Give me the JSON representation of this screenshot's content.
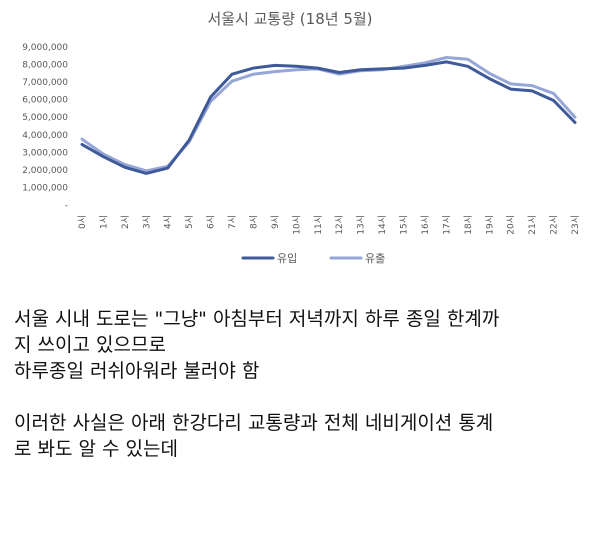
{
  "chart_data": {
    "type": "line",
    "title": "서울시 교통량 (18년 5월)",
    "categories": [
      "0시",
      "1시",
      "2시",
      "3시",
      "4시",
      "5시",
      "6시",
      "7시",
      "8시",
      "9시",
      "10시",
      "11시",
      "12시",
      "13시",
      "14시",
      "15시",
      "16시",
      "17시",
      "18시",
      "19시",
      "20시",
      "21시",
      "22시",
      "23시"
    ],
    "y_ticks": [
      "-",
      "1,000,000",
      "2,000,000",
      "3,000,000",
      "4,000,000",
      "5,000,000",
      "6,000,000",
      "7,000,000",
      "8,000,000",
      "9,000,000"
    ],
    "ylim": [
      0,
      9000000
    ],
    "grid": false,
    "legend_position": "bottom",
    "series": [
      {
        "name": "유입",
        "color": "#3f5a99",
        "values": [
          3450000,
          2750000,
          2150000,
          1800000,
          2100000,
          3700000,
          6150000,
          7450000,
          7800000,
          7950000,
          7900000,
          7800000,
          7550000,
          7700000,
          7750000,
          7800000,
          7950000,
          8150000,
          7900000,
          7200000,
          6600000,
          6500000,
          5950000,
          4700000
        ]
      },
      {
        "name": "유출",
        "color": "#96a6d6",
        "values": [
          3750000,
          2900000,
          2300000,
          1950000,
          2200000,
          3600000,
          5900000,
          7050000,
          7450000,
          7600000,
          7700000,
          7750000,
          7450000,
          7650000,
          7700000,
          7900000,
          8100000,
          8400000,
          8300000,
          7500000,
          6900000,
          6800000,
          6350000,
          5000000
        ]
      }
    ]
  },
  "text": {
    "line1": "서울 시내 도로는 \"그냥\" 아침부터 저녁까지 하루 종일 한계까",
    "line2": "지 쓰이고 있으므로",
    "line3": "하루종일 러쉬아워라 불러야 함",
    "line4": "이러한 사실은 아래 한강다리 교통량과 전체 네비게이션 통계",
    "line5": "로 봐도 알 수 있는데"
  }
}
